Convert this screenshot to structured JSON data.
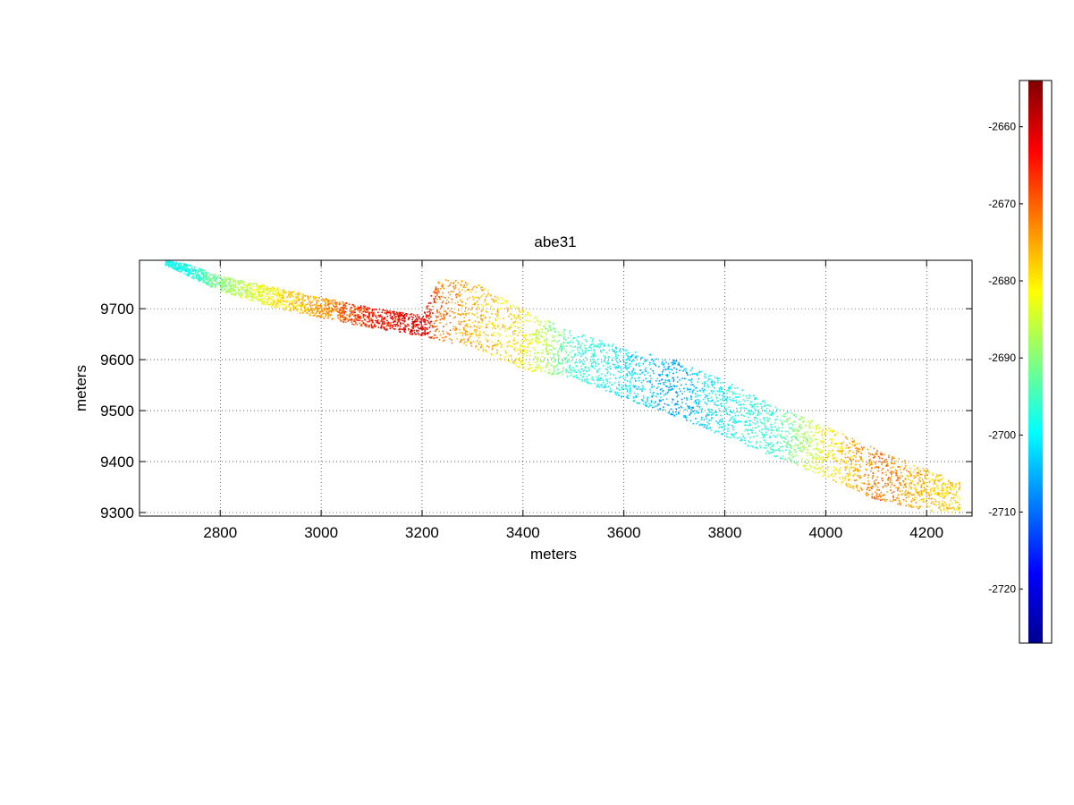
{
  "chart_data": {
    "type": "scatter",
    "title": "abe31",
    "xlabel": "meters",
    "ylabel": "meters",
    "xlim": [
      2640,
      4290
    ],
    "ylim": [
      9293,
      9795
    ],
    "xticks": [
      2800,
      3000,
      3200,
      3400,
      3600,
      3800,
      4000,
      4200
    ],
    "yticks": [
      9300,
      9400,
      9500,
      9600,
      9700
    ],
    "grid": true,
    "colormap": "jet",
    "colorbar": {
      "position": "right",
      "clim": [
        -2727,
        -2654
      ],
      "ticks": [
        -2660,
        -2670,
        -2680,
        -2690,
        -2700,
        -2710,
        -2720
      ]
    },
    "swath_profile": [
      {
        "x": 2690,
        "y": 9792,
        "half_width": 5,
        "z": -2698
      },
      {
        "x": 2740,
        "y": 9775,
        "half_width": 12,
        "z": -2698
      },
      {
        "x": 2800,
        "y": 9750,
        "half_width": 15,
        "z": -2690
      },
      {
        "x": 2900,
        "y": 9725,
        "half_width": 20,
        "z": -2681
      },
      {
        "x": 3000,
        "y": 9703,
        "half_width": 20,
        "z": -2674
      },
      {
        "x": 3100,
        "y": 9683,
        "half_width": 20,
        "z": -2665
      },
      {
        "x": 3200,
        "y": 9668,
        "half_width": 20,
        "z": -2661
      },
      {
        "x": 3230,
        "y": 9700,
        "half_width": 60,
        "z": -2671
      },
      {
        "x": 3300,
        "y": 9690,
        "half_width": 65,
        "z": -2676
      },
      {
        "x": 3400,
        "y": 9640,
        "half_width": 60,
        "z": -2680
      },
      {
        "x": 3500,
        "y": 9610,
        "half_width": 45,
        "z": -2696
      },
      {
        "x": 3600,
        "y": 9575,
        "half_width": 50,
        "z": -2701
      },
      {
        "x": 3700,
        "y": 9545,
        "half_width": 55,
        "z": -2706
      },
      {
        "x": 3800,
        "y": 9505,
        "half_width": 55,
        "z": -2699
      },
      {
        "x": 3900,
        "y": 9460,
        "half_width": 50,
        "z": -2696
      },
      {
        "x": 4000,
        "y": 9420,
        "half_width": 50,
        "z": -2681
      },
      {
        "x": 4100,
        "y": 9375,
        "half_width": 50,
        "z": -2671
      },
      {
        "x": 4200,
        "y": 9345,
        "half_width": 40,
        "z": -2677
      },
      {
        "x": 4265,
        "y": 9330,
        "half_width": 30,
        "z": -2679
      }
    ]
  }
}
